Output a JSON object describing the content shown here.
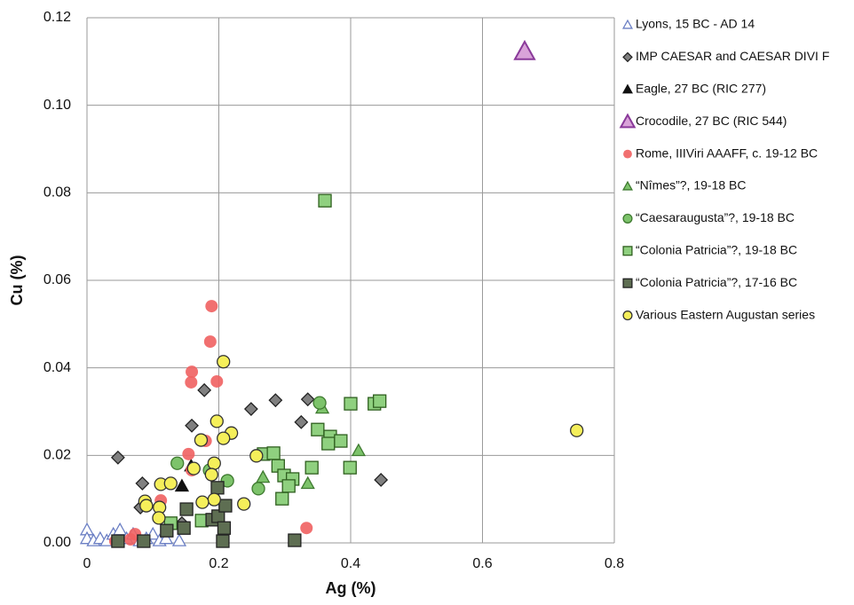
{
  "chart_data": {
    "type": "scatter",
    "x_label": "Ag (%)",
    "y_label": "Cu (%)",
    "xlim": [
      0,
      0.8
    ],
    "xticks": [
      0,
      0.2,
      0.4,
      0.6,
      0.8
    ],
    "ylim": [
      0,
      0.12
    ],
    "yticks": [
      {
        "value": 0,
        "label": "0.00"
      },
      {
        "value": 0.02,
        "label": "0.02"
      },
      {
        "value": 0.04,
        "label": "0.04"
      },
      {
        "value": 0.06,
        "label": "0.06"
      },
      {
        "value": 0.08,
        "label": "0.08"
      },
      {
        "value": 0.1,
        "label": "0.10"
      },
      {
        "value": 0.12,
        "label": "0.12"
      }
    ],
    "grid": true,
    "legend": "right",
    "series": [
      {
        "name": "Lyons, 15 BC - AD 14",
        "marker": "triangle",
        "color": "#ffffff",
        "edgecolor": "#6b7fc4",
        "x": [
          0,
          0,
          0.01,
          0.02,
          0.03,
          0.04,
          0.05,
          0.06,
          0.07,
          0.08,
          0.09,
          0.1,
          0.11,
          0.12,
          0.14
        ],
        "values": [
          0.003,
          0.001,
          0.0005,
          0.001,
          0.0005,
          0.002,
          0.003,
          0.001,
          0.002,
          0.0005,
          0.001,
          0.002,
          0.0005,
          0.001,
          0.0005
        ]
      },
      {
        "name": "IMP CAESAR and CAESAR DIVI F",
        "marker": "diamond",
        "color": "#808080",
        "edgecolor": "#222222",
        "x": [
          0.047,
          0.084,
          0.159,
          0.178,
          0.249,
          0.286,
          0.325,
          0.335,
          0.446,
          0.081,
          0.144
        ],
        "values": [
          0.0195,
          0.0136,
          0.0268,
          0.0349,
          0.0306,
          0.0326,
          0.0276,
          0.0328,
          0.0144,
          0.0081,
          0.0045
        ]
      },
      {
        "name": "Eagle, 27 BC (RIC 277)",
        "marker": "triangle",
        "color": "#111111",
        "edgecolor": "#111111",
        "x": [
          0.144,
          0.158
        ],
        "values": [
          0.013,
          0.0176
        ]
      },
      {
        "name": "Crocodile, 27 BC (RIC 544)",
        "marker": "triangle-big",
        "color": "#d9a3d9",
        "edgecolor": "#8a3a9a",
        "x": [
          0.664
        ],
        "values": [
          0.1123
        ]
      },
      {
        "name": "Rome, IIIViri AAAFF, c. 19-12 BC",
        "marker": "circle",
        "color": "#f06060",
        "edgecolor": "none",
        "x": [
          0.189,
          0.187,
          0.159,
          0.158,
          0.197,
          0.18,
          0.154,
          0.159,
          0.112,
          0.043,
          0.066,
          0.333,
          0.073
        ],
        "values": [
          0.0541,
          0.046,
          0.0391,
          0.0367,
          0.0369,
          0.0233,
          0.0203,
          0.0166,
          0.0097,
          0.0004,
          0.0008,
          0.0034,
          0.002
        ]
      },
      {
        "name": "“Nîmes”?, 19-18 BC",
        "marker": "triangle",
        "color": "#7dc36b",
        "edgecolor": "#3f7a30",
        "x": [
          0.357,
          0.412,
          0.335,
          0.267
        ],
        "values": [
          0.0308,
          0.0211,
          0.0136,
          0.015
        ]
      },
      {
        "name": "“Caesaraugusta”?, 19-18 BC",
        "marker": "circle",
        "color": "#7dc36b",
        "edgecolor": "#3f7a30",
        "x": [
          0.353,
          0.186,
          0.213,
          0.26,
          0.137
        ],
        "values": [
          0.032,
          0.0166,
          0.0142,
          0.0124,
          0.0182
        ]
      },
      {
        "name": "“Colonia Patricia”?, 19-18 BC",
        "marker": "square",
        "color": "#8fd07f",
        "edgecolor": "#2f5f1f",
        "x": [
          0.361,
          0.35,
          0.369,
          0.385,
          0.366,
          0.4,
          0.436,
          0.444,
          0.341,
          0.399,
          0.268,
          0.283,
          0.29,
          0.299,
          0.312,
          0.296,
          0.306,
          0.174,
          0.127
        ],
        "values": [
          0.0782,
          0.0259,
          0.0243,
          0.0233,
          0.0227,
          0.0318,
          0.0318,
          0.0324,
          0.0172,
          0.0172,
          0.0203,
          0.0205,
          0.0176,
          0.0154,
          0.0146,
          0.0101,
          0.013,
          0.0051,
          0.0045
        ]
      },
      {
        "name": "“Colonia Patricia”?, 17-16 BC",
        "marker": "square",
        "color": "#5e6e52",
        "edgecolor": "#222222",
        "x": [
          0.047,
          0.086,
          0.121,
          0.147,
          0.151,
          0.19,
          0.199,
          0.21,
          0.208,
          0.206,
          0.315,
          0.198
        ],
        "values": [
          0.0004,
          0.0004,
          0.0028,
          0.0034,
          0.0077,
          0.0053,
          0.0061,
          0.0085,
          0.0034,
          0.0004,
          0.0006,
          0.0126
        ]
      },
      {
        "name": "Various Eastern Augustan series",
        "marker": "circle",
        "color": "#f5ef5a",
        "edgecolor": "#333333",
        "x": [
          0.207,
          0.197,
          0.219,
          0.207,
          0.173,
          0.193,
          0.257,
          0.189,
          0.162,
          0.193,
          0.175,
          0.238,
          0.112,
          0.127,
          0.088,
          0.09,
          0.11,
          0.109,
          0.743
        ],
        "values": [
          0.0414,
          0.0278,
          0.0251,
          0.0239,
          0.0235,
          0.0182,
          0.0199,
          0.0156,
          0.017,
          0.0099,
          0.0093,
          0.0089,
          0.0134,
          0.0136,
          0.0095,
          0.0085,
          0.0081,
          0.0057,
          0.0257
        ]
      }
    ]
  }
}
